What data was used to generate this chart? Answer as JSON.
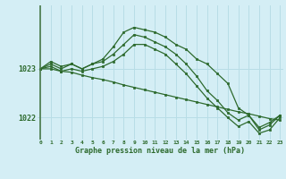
{
  "title": "Graphe pression niveau de la mer (hPa)",
  "bg_color": "#d4eef5",
  "grid_color": "#b8dde6",
  "line_color": "#2d6a2d",
  "marker_color": "#2d6a2d",
  "x_ticks": [
    0,
    1,
    2,
    3,
    4,
    5,
    6,
    7,
    8,
    9,
    10,
    11,
    12,
    13,
    14,
    15,
    16,
    17,
    18,
    19,
    20,
    21,
    22,
    23
  ],
  "xlim": [
    -0.3,
    23.3
  ],
  "ylim": [
    1021.55,
    1024.3
  ],
  "y_ticks": [
    1022,
    1023
  ],
  "series": [
    [
      1023.0,
      1023.15,
      1023.05,
      1023.1,
      1023.0,
      1023.1,
      1023.2,
      1023.45,
      1023.75,
      1023.85,
      1023.8,
      1023.75,
      1023.65,
      1023.5,
      1023.4,
      1023.2,
      1023.1,
      1022.9,
      1022.7,
      1022.2,
      1022.05,
      1021.8,
      1021.9,
      1022.05
    ],
    [
      1023.0,
      1023.1,
      1023.0,
      1023.1,
      1023.0,
      1023.1,
      1023.15,
      1023.3,
      1023.5,
      1023.7,
      1023.65,
      1023.55,
      1023.45,
      1023.3,
      1023.1,
      1022.85,
      1022.55,
      1022.35,
      1022.1,
      1021.95,
      1022.05,
      1021.75,
      1021.85,
      1022.05
    ],
    [
      1023.0,
      1023.05,
      1022.95,
      1023.0,
      1022.95,
      1023.0,
      1023.05,
      1023.15,
      1023.3,
      1023.5,
      1023.5,
      1023.4,
      1023.3,
      1023.1,
      1022.9,
      1022.65,
      1022.4,
      1022.2,
      1022.0,
      1021.82,
      1021.92,
      1021.68,
      1021.75,
      1022.0
    ],
    [
      1023.0,
      1023.0,
      1022.95,
      1022.93,
      1022.87,
      1022.82,
      1022.78,
      1022.73,
      1022.67,
      1022.62,
      1022.57,
      1022.52,
      1022.47,
      1022.42,
      1022.37,
      1022.32,
      1022.27,
      1022.22,
      1022.17,
      1022.12,
      1022.08,
      1022.03,
      1021.98,
      1021.95
    ]
  ]
}
